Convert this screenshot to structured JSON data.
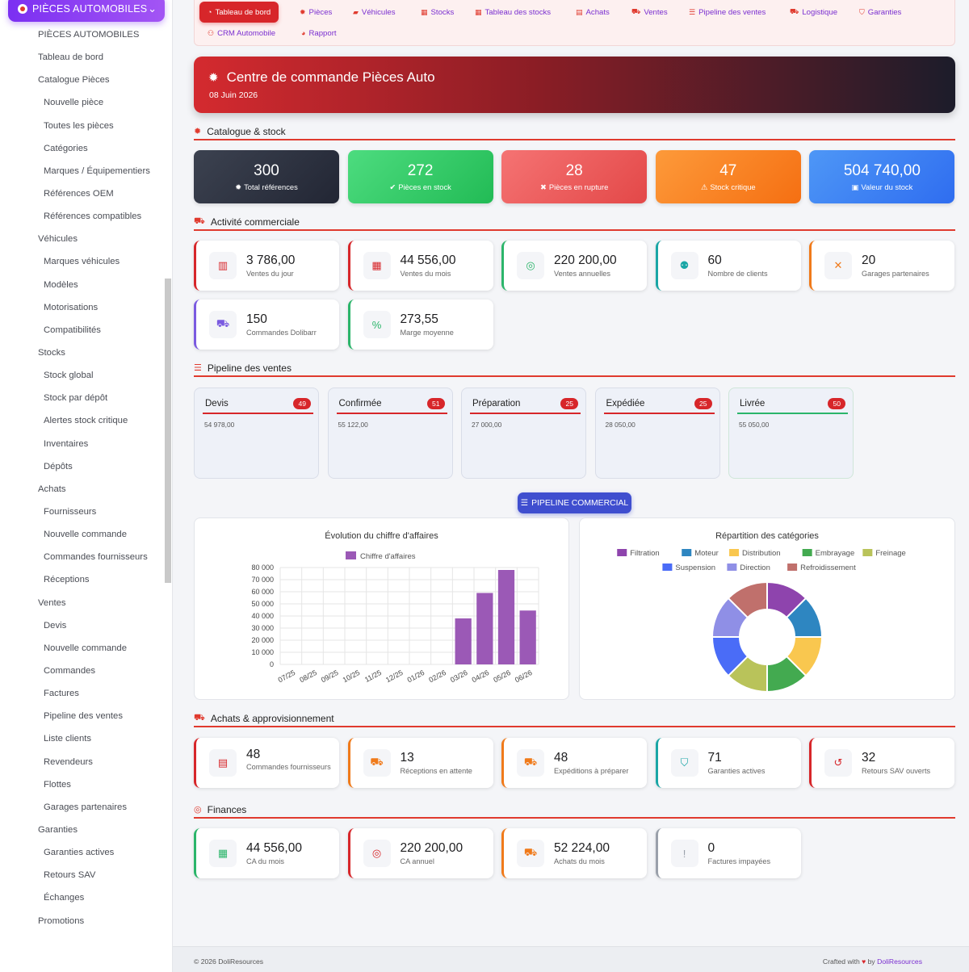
{
  "sidebar": {
    "top_label": "PIÈCES AUTOMOBILES",
    "items": [
      {
        "label": "PIÈCES AUTOMOBILES",
        "level": 1
      },
      {
        "label": "Tableau de bord",
        "level": 1
      },
      {
        "label": "Catalogue Pièces",
        "level": 1
      },
      {
        "label": "Nouvelle pièce",
        "level": 2
      },
      {
        "label": "Toutes les pièces",
        "level": 2
      },
      {
        "label": "Catégories",
        "level": 2
      },
      {
        "label": "Marques / Équipementiers",
        "level": 2
      },
      {
        "label": "Références OEM",
        "level": 2
      },
      {
        "label": "Références compatibles",
        "level": 2
      },
      {
        "label": "Véhicules",
        "level": 1
      },
      {
        "label": "Marques véhicules",
        "level": 2
      },
      {
        "label": "Modèles",
        "level": 2
      },
      {
        "label": "Motorisations",
        "level": 2
      },
      {
        "label": "Compatibilités",
        "level": 2
      },
      {
        "label": "Stocks",
        "level": 1
      },
      {
        "label": "Stock global",
        "level": 2
      },
      {
        "label": "Stock par dépôt",
        "level": 2
      },
      {
        "label": "Alertes stock critique",
        "level": 2
      },
      {
        "label": "Inventaires",
        "level": 2
      },
      {
        "label": "Dépôts",
        "level": 2
      },
      {
        "label": "Achats",
        "level": 1
      },
      {
        "label": "Fournisseurs",
        "level": 2
      },
      {
        "label": "Nouvelle commande",
        "level": 2
      },
      {
        "label": "Commandes fournisseurs",
        "level": 2
      },
      {
        "label": "Réceptions",
        "level": 2
      },
      {
        "label": "Ventes",
        "level": 1
      },
      {
        "label": "Devis",
        "level": 2
      },
      {
        "label": "Nouvelle commande",
        "level": 2
      },
      {
        "label": "Commandes",
        "level": 2
      },
      {
        "label": "Factures",
        "level": 2
      },
      {
        "label": "Pipeline des ventes",
        "level": 2
      },
      {
        "label": "Liste clients",
        "level": 2
      },
      {
        "label": "Revendeurs",
        "level": 2
      },
      {
        "label": "Flottes",
        "level": 2
      },
      {
        "label": "Garages partenaires",
        "level": 2
      },
      {
        "label": "Garanties",
        "level": 1
      },
      {
        "label": "Garanties actives",
        "level": 2
      },
      {
        "label": "Retours SAV",
        "level": 2
      },
      {
        "label": "Échanges",
        "level": 2
      },
      {
        "label": "Promotions",
        "level": 1
      }
    ]
  },
  "tabs": [
    {
      "label": "Tableau de bord",
      "icon": "gauge-icon",
      "glyph": "◔",
      "active": true
    },
    {
      "label": "Pièces",
      "icon": "gear-icon",
      "glyph": "✹",
      "active": false
    },
    {
      "label": "Véhicules",
      "icon": "car-icon",
      "glyph": "▰",
      "active": false
    },
    {
      "label": "Stocks",
      "icon": "boxes-icon",
      "glyph": "▦",
      "active": false
    },
    {
      "label": "Tableau des stocks",
      "icon": "grid-icon",
      "glyph": "▦",
      "active": false
    },
    {
      "label": "Achats",
      "icon": "file-icon",
      "glyph": "▤",
      "active": false
    },
    {
      "label": "Ventes",
      "icon": "cart-icon",
      "glyph": "⛟",
      "active": false
    },
    {
      "label": "Pipeline des ventes",
      "icon": "bars-icon",
      "glyph": "☰",
      "active": false
    },
    {
      "label": "Logistique",
      "icon": "truck-icon",
      "glyph": "⛟",
      "active": false
    },
    {
      "label": "Garanties",
      "icon": "shield-icon",
      "glyph": "⛉",
      "active": false
    },
    {
      "label": "CRM Automobile",
      "icon": "user-plus-icon",
      "glyph": "⚇",
      "active": false
    },
    {
      "label": "Rapport",
      "icon": "pie-icon",
      "glyph": "◕",
      "active": false
    }
  ],
  "hero": {
    "title": "Centre de commande Pièces Auto",
    "date": "08 Juin 2026"
  },
  "sections": {
    "catalogue": "Catalogue & stock",
    "activity": "Activité commerciale",
    "pipeline": "Pipeline des ventes",
    "purchases": "Achats & approvisionnement",
    "finances": "Finances"
  },
  "stock_stats": [
    {
      "value": "300",
      "label": "Total références",
      "glyph": "✹",
      "icon": "gear-icon",
      "color": "#3a3f4b"
    },
    {
      "value": "272",
      "label": "Pièces en stock",
      "glyph": "✔",
      "icon": "check-circle-icon",
      "color": "#2ec866"
    },
    {
      "value": "28",
      "label": "Pièces en rupture",
      "glyph": "✖",
      "icon": "x-circle-icon",
      "color": "#f05a5a"
    },
    {
      "value": "47",
      "label": "Stock critique",
      "glyph": "⚠",
      "icon": "warning-icon",
      "color": "#fb7f1e"
    },
    {
      "value": "504 740,00",
      "label": "Valeur du stock",
      "glyph": "▣",
      "icon": "boxes-icon",
      "color": "#3b7df2"
    }
  ],
  "activity": [
    {
      "value": "3 786,00",
      "label": "Ventes du jour",
      "icon": "cash-register-icon",
      "glyph": "▥",
      "color": "#d7262a"
    },
    {
      "value": "44 556,00",
      "label": "Ventes du mois",
      "icon": "calendar-icon",
      "glyph": "▦",
      "color": "#d7262a"
    },
    {
      "value": "220 200,00",
      "label": "Ventes annuelles",
      "icon": "coins-icon",
      "glyph": "◎",
      "color": "#2bb56a"
    },
    {
      "value": "60",
      "label": "Nombre de clients",
      "icon": "users-icon",
      "glyph": "⚉",
      "color": "#1aa6a6"
    },
    {
      "value": "20",
      "label": "Garages partenaires",
      "icon": "tools-icon",
      "glyph": "✕",
      "color": "#f07a1a"
    },
    {
      "value": "150",
      "label": "Commandes Dolibarr",
      "icon": "cart-icon",
      "glyph": "⛟",
      "color": "#7a5ae0"
    },
    {
      "value": "273,55",
      "label": "Marge moyenne",
      "icon": "percent-icon",
      "glyph": "%",
      "color": "#2bb56a"
    }
  ],
  "pipeline": [
    {
      "name": "Devis",
      "count": "49",
      "amount": "54 978,00",
      "accent": "red"
    },
    {
      "name": "Confirmée",
      "count": "51",
      "amount": "55 122,00",
      "accent": "red"
    },
    {
      "name": "Préparation",
      "count": "25",
      "amount": "27 000,00",
      "accent": "red"
    },
    {
      "name": "Expédiée",
      "count": "25",
      "amount": "28 050,00",
      "accent": "red"
    },
    {
      "name": "Livrée",
      "count": "50",
      "amount": "55 050,00",
      "accent": "green"
    }
  ],
  "pipeline_button": "PIPELINE COMMERCIAL",
  "chart_data": [
    {
      "type": "bar",
      "title": "Évolution du chiffre d'affaires",
      "categories": [
        "07/25",
        "08/25",
        "09/25",
        "10/25",
        "11/25",
        "12/25",
        "01/26",
        "02/26",
        "03/26",
        "04/26",
        "05/26",
        "06/26"
      ],
      "series": [
        {
          "name": "Chiffre d'affaires",
          "values": [
            0,
            0,
            0,
            0,
            0,
            0,
            0,
            0,
            38000,
            59000,
            78000,
            44500
          ],
          "color": "#9b59b6"
        }
      ],
      "yticks": [
        "80 000",
        "70 000",
        "60 000",
        "50 000",
        "40 000",
        "30 000",
        "20 000",
        "10 000",
        "0"
      ],
      "ylim": [
        0,
        80000
      ],
      "grid": true,
      "legend": "top"
    },
    {
      "type": "pie",
      "title": "Répartition des catégories",
      "labels": [
        "Filtration",
        "Moteur",
        "Distribution",
        "Embrayage",
        "Freinage",
        "Suspension",
        "Direction",
        "Refroidissement"
      ],
      "values": [
        1,
        1,
        1,
        1,
        1,
        1,
        1,
        1
      ],
      "colors": [
        "#8e44ad",
        "#2e86c1",
        "#f9c74f",
        "#43aa50",
        "#b9c35a",
        "#4a6cf7",
        "#8f8fe6",
        "#c0706c"
      ],
      "legend": "top"
    }
  ],
  "purchases": [
    {
      "value": "48",
      "label": "Commandes fournisseurs",
      "icon": "file-invoice-icon",
      "glyph": "▤",
      "color": "#d7262a"
    },
    {
      "value": "13",
      "label": "Réceptions en attente",
      "icon": "dolly-icon",
      "glyph": "⛟",
      "color": "#f07a1a"
    },
    {
      "value": "48",
      "label": "Expéditions à préparer",
      "icon": "truck-icon",
      "glyph": "⛟",
      "color": "#f07a1a"
    },
    {
      "value": "71",
      "label": "Garanties actives",
      "icon": "shield-icon",
      "glyph": "⛉",
      "color": "#1aa6a6"
    },
    {
      "value": "32",
      "label": "Retours SAV ouverts",
      "icon": "undo-icon",
      "glyph": "↺",
      "color": "#d7262a"
    }
  ],
  "finances": [
    {
      "value": "44 556,00",
      "label": "CA du mois",
      "icon": "calendar-icon",
      "glyph": "▦",
      "color": "#2bb56a"
    },
    {
      "value": "220 200,00",
      "label": "CA annuel",
      "icon": "coins-icon",
      "glyph": "◎",
      "color": "#d7262a"
    },
    {
      "value": "52 224,00",
      "label": "Achats du mois",
      "icon": "truck-icon",
      "glyph": "⛟",
      "color": "#f07a1a"
    },
    {
      "value": "0",
      "label": "Factures impayées",
      "icon": "alert-circle-icon",
      "glyph": "!",
      "color": "#9aa0aa"
    }
  ],
  "footer": {
    "copyright": "© 2026 DoliResources",
    "crafted": "Crafted with",
    "by": "by",
    "brand": "DoliResources"
  }
}
